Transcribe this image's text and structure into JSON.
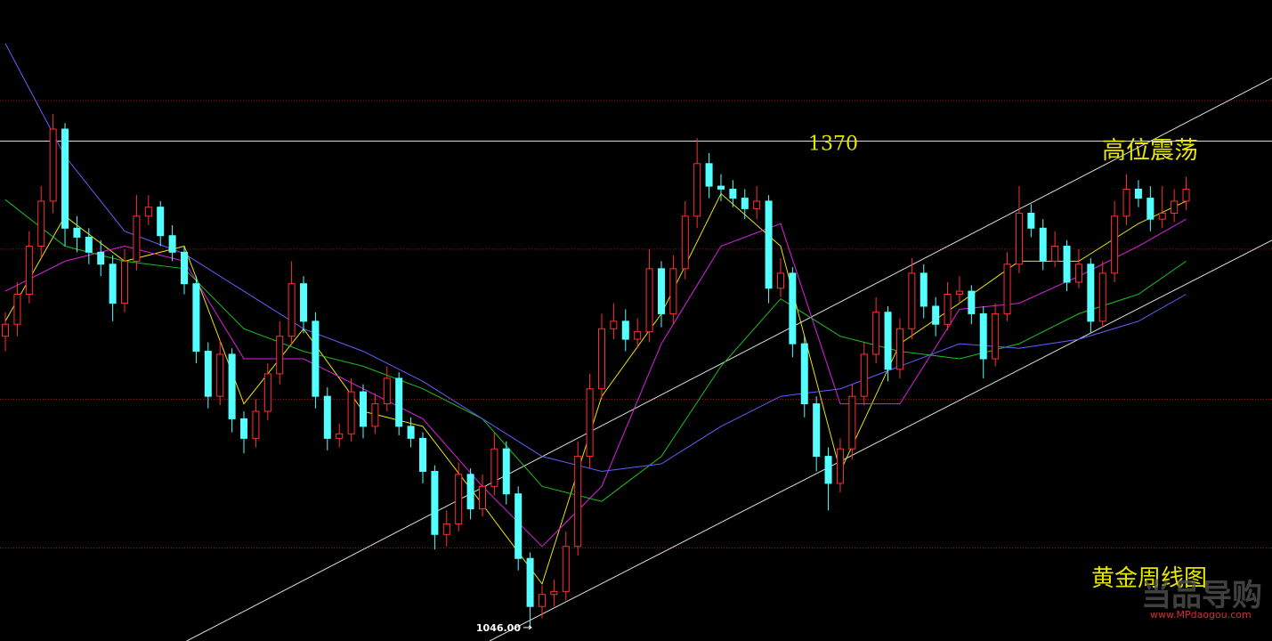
{
  "chart_data": {
    "type": "candlestick",
    "title": "黄金周线图",
    "annotation": "高位震荡",
    "watermark": "当品导购",
    "watermark_url": "www.MPdaogou.com",
    "xlim": [
      -0.45,
      106.2
    ],
    "ylim": [
      1037,
      1464
    ],
    "hlines": [
      1397,
      1298,
      1198,
      1099
    ],
    "hline_color": "#a01010",
    "resistance": 1370,
    "low_label": {
      "value": 1046,
      "label": "1046.00"
    },
    "up_color": "#ff3030",
    "down_color": "#54ffff",
    "candles": {
      "open": [
        1240,
        1248,
        1268,
        1300,
        1330,
        1378,
        1312,
        1306,
        1296,
        1288,
        1262,
        1290,
        1320,
        1326,
        1307,
        1296,
        1275,
        1230,
        1200,
        1228,
        1185,
        1172,
        1190,
        1215,
        1240,
        1275,
        1250,
        1200,
        1172,
        1175,
        1203,
        1180,
        1195,
        1212,
        1180,
        1172,
        1150,
        1108,
        1115,
        1148,
        1125,
        1140,
        1165,
        1135,
        1092,
        1060,
        1068,
        1070,
        1100,
        1160,
        1205,
        1245,
        1250,
        1238,
        1243,
        1285,
        1255,
        1285,
        1320,
        1355,
        1340,
        1338,
        1332,
        1325,
        1330,
        1272,
        1282,
        1235,
        1195,
        1160,
        1142,
        1165,
        1200,
        1228,
        1256,
        1218,
        1245,
        1282,
        1260,
        1248,
        1268,
        1270,
        1255,
        1225,
        1255,
        1288,
        1322,
        1312,
        1290,
        1300,
        1276,
        1288,
        1250,
        1282,
        1320,
        1338,
        1332,
        1318,
        1322,
        1330
      ],
      "high": [
        1256,
        1276,
        1310,
        1340,
        1388,
        1382,
        1320,
        1312,
        1304,
        1294,
        1298,
        1334,
        1334,
        1330,
        1314,
        1300,
        1280,
        1236,
        1238,
        1232,
        1190,
        1198,
        1222,
        1250,
        1290,
        1280,
        1256,
        1206,
        1182,
        1212,
        1208,
        1202,
        1220,
        1216,
        1186,
        1176,
        1154,
        1124,
        1156,
        1152,
        1148,
        1176,
        1170,
        1140,
        1096,
        1074,
        1078,
        1110,
        1170,
        1215,
        1255,
        1262,
        1258,
        1252,
        1298,
        1290,
        1294,
        1330,
        1372,
        1362,
        1348,
        1344,
        1338,
        1340,
        1334,
        1292,
        1286,
        1240,
        1200,
        1166,
        1172,
        1208,
        1236,
        1266,
        1260,
        1252,
        1292,
        1288,
        1266,
        1276,
        1280,
        1274,
        1260,
        1262,
        1296,
        1340,
        1328,
        1318,
        1310,
        1304,
        1298,
        1292,
        1290,
        1330,
        1348,
        1344,
        1340,
        1340,
        1338,
        1346
      ],
      "low": [
        1230,
        1240,
        1262,
        1292,
        1322,
        1300,
        1296,
        1288,
        1280,
        1250,
        1256,
        1284,
        1314,
        1300,
        1290,
        1268,
        1222,
        1192,
        1194,
        1176,
        1162,
        1166,
        1184,
        1208,
        1234,
        1242,
        1192,
        1164,
        1166,
        1170,
        1172,
        1175,
        1190,
        1174,
        1166,
        1142,
        1098,
        1100,
        1110,
        1118,
        1120,
        1134,
        1128,
        1084,
        1046,
        1052,
        1060,
        1064,
        1094,
        1152,
        1198,
        1238,
        1230,
        1232,
        1236,
        1246,
        1248,
        1278,
        1312,
        1332,
        1330,
        1326,
        1318,
        1318,
        1262,
        1266,
        1226,
        1186,
        1150,
        1124,
        1136,
        1158,
        1194,
        1222,
        1210,
        1212,
        1238,
        1252,
        1240,
        1244,
        1262,
        1248,
        1212,
        1220,
        1250,
        1282,
        1306,
        1284,
        1286,
        1270,
        1272,
        1242,
        1246,
        1276,
        1314,
        1326,
        1310,
        1312,
        1316,
        1324
      ],
      "close": [
        1248,
        1268,
        1300,
        1330,
        1378,
        1312,
        1306,
        1296,
        1288,
        1262,
        1290,
        1320,
        1326,
        1307,
        1296,
        1275,
        1230,
        1200,
        1228,
        1185,
        1172,
        1190,
        1215,
        1240,
        1275,
        1250,
        1200,
        1172,
        1175,
        1203,
        1180,
        1195,
        1212,
        1180,
        1172,
        1150,
        1108,
        1115,
        1148,
        1125,
        1140,
        1165,
        1135,
        1092,
        1060,
        1068,
        1070,
        1100,
        1160,
        1205,
        1245,
        1250,
        1238,
        1243,
        1285,
        1255,
        1285,
        1320,
        1355,
        1340,
        1338,
        1332,
        1325,
        1330,
        1272,
        1282,
        1235,
        1195,
        1160,
        1142,
        1165,
        1200,
        1228,
        1256,
        1218,
        1245,
        1282,
        1260,
        1248,
        1268,
        1270,
        1255,
        1225,
        1255,
        1288,
        1322,
        1312,
        1290,
        1300,
        1276,
        1288,
        1250,
        1282,
        1320,
        1338,
        1332,
        1318,
        1322,
        1330,
        1338
      ]
    },
    "series": [
      {
        "color": "#e6e600",
        "x": [
          0,
          5,
          10,
          15,
          20,
          25,
          30,
          35,
          40,
          45,
          50,
          55,
          60,
          65,
          70,
          75,
          80,
          85,
          90,
          95,
          99
        ],
        "values": [
          1250,
          1320,
          1290,
          1300,
          1195,
          1245,
          1190,
          1180,
          1128,
          1075,
          1200,
          1255,
          1335,
          1300,
          1150,
          1235,
          1262,
          1290,
          1290,
          1315,
          1330
        ]
      },
      {
        "color": "#e020e0",
        "x": [
          0,
          5,
          10,
          15,
          20,
          25,
          30,
          35,
          40,
          45,
          50,
          55,
          60,
          65,
          70,
          75,
          80,
          85,
          90,
          95,
          99
        ],
        "values": [
          1270,
          1290,
          1300,
          1290,
          1225,
          1225,
          1205,
          1185,
          1140,
          1100,
          1140,
          1235,
          1300,
          1315,
          1195,
          1195,
          1258,
          1262,
          1280,
          1300,
          1318
        ]
      },
      {
        "color": "#20c020",
        "x": [
          0,
          5,
          10,
          15,
          20,
          25,
          30,
          35,
          40,
          45,
          50,
          55,
          60,
          65,
          70,
          75,
          80,
          85,
          90,
          95,
          99
        ],
        "values": [
          1331,
          1300,
          1290,
          1285,
          1245,
          1230,
          1220,
          1205,
          1185,
          1140,
          1130,
          1160,
          1220,
          1265,
          1240,
          1230,
          1225,
          1235,
          1255,
          1268,
          1290
        ]
      },
      {
        "color": "#6060ff",
        "x": [
          0,
          5,
          10,
          15,
          20,
          25,
          30,
          35,
          40,
          45,
          50,
          55,
          60,
          65,
          70,
          75,
          80,
          85,
          90,
          95,
          99
        ],
        "values": [
          1435,
          1360,
          1310,
          1295,
          1270,
          1245,
          1230,
          1210,
          1185,
          1160,
          1150,
          1155,
          1180,
          1200,
          1205,
          1220,
          1235,
          1232,
          1238,
          1250,
          1268
        ]
      }
    ],
    "trendlines": [
      {
        "x": [
          15.2,
          106.2
        ],
        "values": [
          1037,
          1412
        ]
      },
      {
        "x": [
          40.6,
          106.2
        ],
        "values": [
          1037,
          1304
        ]
      }
    ]
  }
}
